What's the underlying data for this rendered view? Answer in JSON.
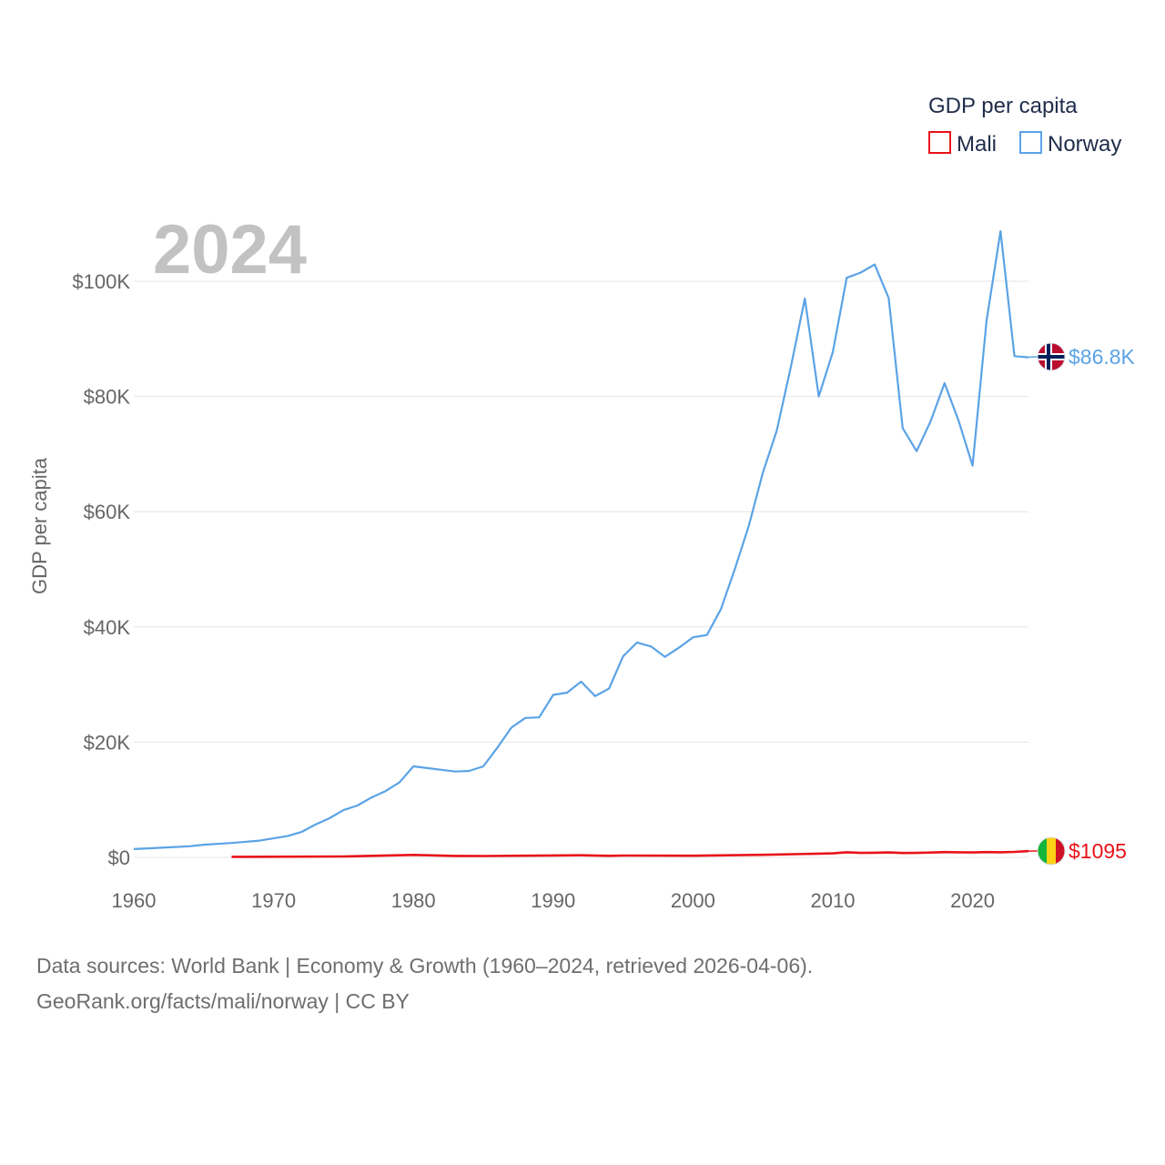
{
  "chart_data": {
    "type": "line",
    "title": "",
    "xlabel": "",
    "ylabel": "GDP per capita",
    "year_label": "2024",
    "legend_title": "GDP per capita",
    "xlim": [
      1960,
      2024
    ],
    "ylim": [
      0,
      110000
    ],
    "x_ticks": [
      1960,
      1970,
      1980,
      1990,
      2000,
      2010,
      2020
    ],
    "x_tick_labels": [
      "1960",
      "1970",
      "1980",
      "1990",
      "2000",
      "2010",
      "2020"
    ],
    "y_ticks": [
      0,
      20000,
      40000,
      60000,
      80000,
      100000
    ],
    "y_tick_labels": [
      "$0",
      "$20K",
      "$40K",
      "$60K",
      "$80K",
      "$100K"
    ],
    "series": [
      {
        "name": "Mali",
        "color": "#e8131a",
        "end_label": "$1095",
        "flag": "mali-flag-icon",
        "points": [
          [
            1967,
            100
          ],
          [
            1970,
            110
          ],
          [
            1975,
            160
          ],
          [
            1980,
            420
          ],
          [
            1983,
            260
          ],
          [
            1985,
            240
          ],
          [
            1990,
            330
          ],
          [
            1992,
            360
          ],
          [
            1994,
            270
          ],
          [
            1995,
            310
          ],
          [
            2000,
            280
          ],
          [
            2005,
            450
          ],
          [
            2010,
            700
          ],
          [
            2011,
            880
          ],
          [
            2012,
            780
          ],
          [
            2013,
            800
          ],
          [
            2014,
            850
          ],
          [
            2015,
            760
          ],
          [
            2016,
            780
          ],
          [
            2017,
            830
          ],
          [
            2018,
            910
          ],
          [
            2019,
            890
          ],
          [
            2020,
            860
          ],
          [
            2021,
            910
          ],
          [
            2022,
            880
          ],
          [
            2023,
            950
          ],
          [
            2024,
            1095
          ]
        ]
      },
      {
        "name": "Norway",
        "color": "#5ba3e6",
        "end_label": "$86.8K",
        "flag": "norway-flag-icon",
        "points": [
          [
            1960,
            1440
          ],
          [
            1962,
            1680
          ],
          [
            1964,
            1930
          ],
          [
            1965,
            2200
          ],
          [
            1967,
            2500
          ],
          [
            1969,
            2900
          ],
          [
            1970,
            3300
          ],
          [
            1971,
            3700
          ],
          [
            1972,
            4400
          ],
          [
            1973,
            5700
          ],
          [
            1974,
            6800
          ],
          [
            1975,
            8200
          ],
          [
            1976,
            9000
          ],
          [
            1977,
            10400
          ],
          [
            1978,
            11500
          ],
          [
            1979,
            13000
          ],
          [
            1980,
            15800
          ],
          [
            1981,
            15500
          ],
          [
            1982,
            15200
          ],
          [
            1983,
            14900
          ],
          [
            1984,
            15000
          ],
          [
            1985,
            15800
          ],
          [
            1986,
            19000
          ],
          [
            1987,
            22500
          ],
          [
            1988,
            24200
          ],
          [
            1989,
            24300
          ],
          [
            1990,
            28200
          ],
          [
            1991,
            28600
          ],
          [
            1992,
            30500
          ],
          [
            1993,
            28000
          ],
          [
            1994,
            29300
          ],
          [
            1995,
            34900
          ],
          [
            1996,
            37300
          ],
          [
            1997,
            36600
          ],
          [
            1998,
            34800
          ],
          [
            1999,
            36400
          ],
          [
            2000,
            38200
          ],
          [
            2001,
            38600
          ],
          [
            2002,
            43100
          ],
          [
            2003,
            50100
          ],
          [
            2004,
            57600
          ],
          [
            2005,
            66800
          ],
          [
            2006,
            74100
          ],
          [
            2007,
            85100
          ],
          [
            2008,
            97000
          ],
          [
            2009,
            80000
          ],
          [
            2010,
            87700
          ],
          [
            2011,
            100600
          ],
          [
            2012,
            101500
          ],
          [
            2013,
            102900
          ],
          [
            2014,
            97100
          ],
          [
            2015,
            74500
          ],
          [
            2016,
            70500
          ],
          [
            2017,
            75700
          ],
          [
            2018,
            82300
          ],
          [
            2019,
            75800
          ],
          [
            2020,
            68000
          ],
          [
            2021,
            93100
          ],
          [
            2022,
            108700
          ],
          [
            2023,
            87000
          ],
          [
            2024,
            86800
          ]
        ]
      }
    ]
  },
  "footer": {
    "line1": "Data sources: World Bank | Economy & Growth (1960–2024, retrieved 2026-04-06).",
    "line2": "GeoRank.org/facts/mali/norway | CC BY"
  }
}
